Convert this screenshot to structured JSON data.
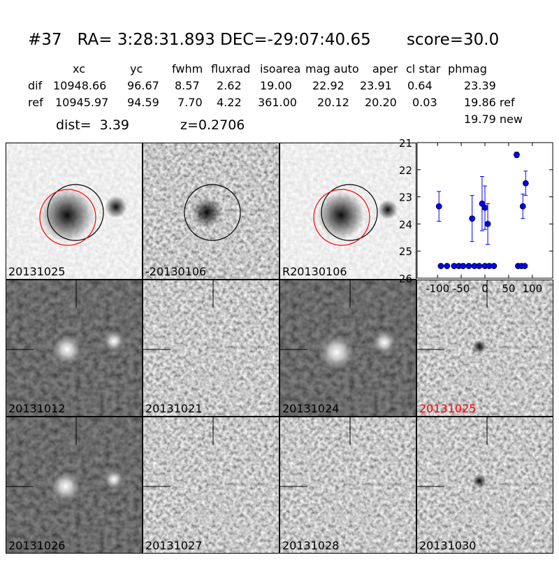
{
  "header": {
    "title": "#37   RA= 3:28:31.893 DEC=-29:07:40.65       score=30.0",
    "columns": [
      "xc",
      "yc",
      "fwhm",
      "fluxrad",
      "isoarea",
      "mag auto",
      "aper",
      "cl star",
      "phmag"
    ],
    "rows": [
      [
        "dif",
        "10948.66",
        "96.67",
        "8.57",
        "2.62",
        "19.00",
        "22.92",
        "23.91",
        "0.64",
        "23.39"
      ],
      [
        "ref",
        "10945.97",
        "94.59",
        "7.70",
        "4.22",
        "361.00",
        "20.12",
        "20.20",
        "0.03",
        "19.86 ref"
      ]
    ],
    "extra": "19.79 new",
    "dist": "dist=  3.39",
    "z": "z=0.2706"
  },
  "panels": [
    {
      "label": "20131025"
    },
    {
      "label": "-20130106"
    },
    {
      "label": "R20130106"
    },
    {
      "label": "20131012"
    },
    {
      "label": "20131021"
    },
    {
      "label": "20131024"
    },
    {
      "label": "20131025",
      "color": "#ff0000"
    },
    {
      "label": "20131026"
    },
    {
      "label": "20131027"
    },
    {
      "label": "20131028"
    },
    {
      "label": "20131030"
    }
  ],
  "chart_data": {
    "type": "scatter",
    "color": "#0000ff",
    "x": [
      -97,
      -27,
      -6,
      0,
      6,
      67,
      80,
      86,
      -93,
      -80,
      -65,
      -55,
      -46,
      -34,
      -22,
      -12,
      0,
      9,
      19,
      70,
      77,
      84
    ],
    "values": [
      23.35,
      23.8,
      23.25,
      23.4,
      24.0,
      21.45,
      23.35,
      22.5,
      25.55,
      25.55,
      25.55,
      25.55,
      25.55,
      25.55,
      25.55,
      25.55,
      25.55,
      25.55,
      25.55,
      25.55,
      25.55,
      25.55
    ],
    "errors": [
      0.55,
      0.85,
      1.0,
      0.8,
      0.75,
      0.1,
      0.45,
      0.45,
      null,
      null,
      null,
      null,
      null,
      null,
      null,
      null,
      null,
      null,
      null,
      null,
      null,
      null
    ],
    "xlim": [
      -143,
      143
    ],
    "ylim": [
      21,
      26
    ],
    "y_inverted": true,
    "xticks": [
      -100,
      -50,
      0,
      50,
      100
    ],
    "yticks": [
      21,
      22,
      23,
      24,
      25,
      26
    ]
  }
}
